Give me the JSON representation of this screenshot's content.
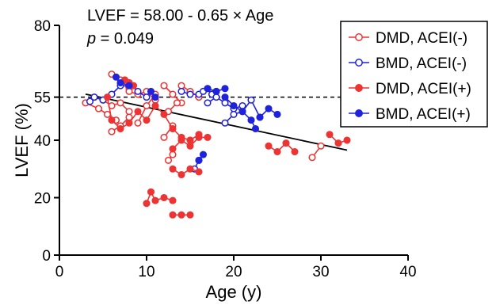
{
  "chart_data": {
    "type": "scatter",
    "annotations": {
      "equation": "LVEF = 58.00 - 0.65 × Age",
      "p_symbol": "p",
      "p_value": " = 0.049"
    },
    "xlabel": "Age (y)",
    "ylabel": "LVEF (%)",
    "xlim": [
      0,
      40
    ],
    "ylim": [
      0,
      80
    ],
    "xticks": [
      0,
      10,
      20,
      30,
      40
    ],
    "xtick_labels": [
      "0",
      "10",
      "20",
      "30",
      "40"
    ],
    "yticks": [
      0,
      20,
      40,
      55,
      80
    ],
    "ytick_labels": [
      "0",
      "20",
      "40",
      "55",
      "80"
    ],
    "reference_line": {
      "y": 55,
      "style": "dashed"
    },
    "regression_line": {
      "intercept": 58.0,
      "slope": -0.65,
      "x_range": [
        3,
        33
      ]
    },
    "legend_position": "top-right",
    "series": [
      {
        "name": "DMD, ACEI(-)",
        "color": "#ee3333",
        "marker": "open",
        "segments": [
          [
            [
              3,
              53
            ],
            [
              4.5,
              51
            ],
            [
              5.5,
              49
            ],
            [
              6.5,
              47
            ]
          ],
          [
            [
              4,
              55
            ],
            [
              5,
              54
            ],
            [
              6,
              52
            ],
            [
              7,
              53
            ],
            [
              8,
              50
            ]
          ],
          [
            [
              6,
              63
            ],
            [
              7,
              60
            ],
            [
              8,
              58
            ]
          ],
          [
            [
              7,
              61
            ],
            [
              8,
              57
            ],
            [
              9,
              56
            ],
            [
              10,
              57
            ],
            [
              11,
              54
            ]
          ],
          [
            [
              6,
              43
            ],
            [
              7,
              45
            ],
            [
              8,
              48
            ]
          ],
          [
            [
              9,
              46
            ],
            [
              10,
              52
            ],
            [
              11,
              56
            ]
          ],
          [
            [
              12,
              59
            ],
            [
              13,
              56
            ],
            [
              14,
              53
            ]
          ],
          [
            [
              12,
              41
            ],
            [
              13,
              45
            ]
          ],
          [
            [
              12.5,
              33
            ],
            [
              13,
              35
            ]
          ],
          [
            [
              14,
              59
            ],
            [
              15,
              57
            ],
            [
              16,
              55
            ]
          ],
          [
            [
              12.5,
              50
            ],
            [
              13.5,
              53
            ]
          ],
          [
            [
              29,
              34
            ],
            [
              30,
              38
            ]
          ]
        ]
      },
      {
        "name": "BMD, ACEI(-)",
        "color": "#1f22dd",
        "marker": "open",
        "segments": [
          [
            [
              3.5,
              53.5
            ],
            [
              4,
              55
            ],
            [
              5,
              54
            ]
          ],
          [
            [
              6,
              56
            ],
            [
              7,
              59
            ],
            [
              7.5,
              60
            ]
          ],
          [
            [
              8,
              60
            ],
            [
              9,
              57
            ],
            [
              10,
              55
            ]
          ],
          [
            [
              14,
              57
            ],
            [
              15,
              56
            ],
            [
              16,
              56
            ],
            [
              16.5,
              57
            ],
            [
              17,
              58
            ],
            [
              17.5,
              56
            ],
            [
              18,
              57
            ]
          ],
          [
            [
              17,
              53
            ],
            [
              18,
              55
            ],
            [
              19,
              53
            ],
            [
              20,
              51
            ],
            [
              21,
              52
            ]
          ],
          [
            [
              19,
              46
            ],
            [
              20,
              49
            ],
            [
              21,
              50
            ],
            [
              22,
              54
            ],
            [
              23,
              48
            ]
          ],
          [
            [
              15.5,
              30
            ],
            [
              16,
              33
            ]
          ]
        ]
      },
      {
        "name": "DMD, ACEI(+)",
        "color": "#ee3333",
        "marker": "filled",
        "segments": [
          [
            [
              5.5,
              55
            ],
            [
              6,
              47
            ],
            [
              7,
              44
            ],
            [
              8,
              46
            ],
            [
              9,
              50
            ],
            [
              10,
              47
            ],
            [
              11,
              52
            ],
            [
              12,
              49
            ],
            [
              13,
              44
            ],
            [
              14,
              41
            ],
            [
              15,
              40
            ]
          ],
          [
            [
              7.5,
              61
            ],
            [
              8,
              60
            ],
            [
              8.5,
              59
            ]
          ],
          [
            [
              13,
              37
            ],
            [
              14,
              40
            ],
            [
              15,
              38
            ],
            [
              16,
              41
            ],
            [
              17,
              41
            ]
          ],
          [
            [
              13,
              30
            ],
            [
              14,
              28
            ],
            [
              15,
              30
            ],
            [
              16,
              29
            ]
          ],
          [
            [
              10,
              18
            ],
            [
              10.5,
              22
            ],
            [
              11,
              19
            ],
            [
              12,
              20
            ],
            [
              13,
              19
            ]
          ],
          [
            [
              13,
              14
            ],
            [
              14,
              14
            ],
            [
              15,
              14
            ]
          ],
          [
            [
              15,
              40
            ],
            [
              16,
              42
            ]
          ],
          [
            [
              24,
              38
            ],
            [
              25,
              36
            ],
            [
              26,
              39
            ],
            [
              27,
              36
            ]
          ],
          [
            [
              31,
              42
            ],
            [
              32,
              39
            ],
            [
              33,
              40
            ]
          ]
        ]
      },
      {
        "name": "BMD, ACEI(+)",
        "color": "#1f22dd",
        "marker": "filled",
        "segments": [
          [
            [
              6.5,
              62
            ],
            [
              7,
              60
            ],
            [
              8,
              59
            ]
          ],
          [
            [
              10.5,
              57
            ],
            [
              11,
              55
            ]
          ],
          [
            [
              17,
              58
            ],
            [
              18,
              57
            ],
            [
              19,
              58
            ]
          ],
          [
            [
              19,
              55
            ],
            [
              20,
              52
            ],
            [
              21,
              50
            ],
            [
              22,
              47
            ],
            [
              22.5,
              44
            ]
          ],
          [
            [
              23,
              48
            ],
            [
              24,
              51
            ],
            [
              25,
              49
            ]
          ],
          [
            [
              16,
              33
            ],
            [
              16.5,
              35
            ]
          ]
        ]
      }
    ]
  }
}
